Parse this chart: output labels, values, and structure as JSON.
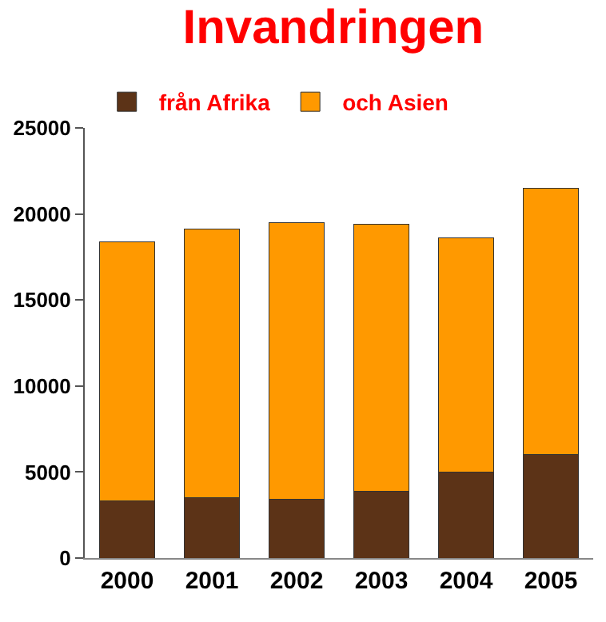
{
  "chart_data": {
    "type": "bar",
    "title": "Invandringen",
    "stacked": true,
    "categories": [
      "2000",
      "2001",
      "2002",
      "2003",
      "2004",
      "2005"
    ],
    "series": [
      {
        "name": "från Afrika",
        "color": "#5c3317",
        "values": [
          3300,
          3500,
          3400,
          3900,
          5000,
          6000
        ]
      },
      {
        "name": "och Asien",
        "color": "#ff9900",
        "values": [
          15100,
          15600,
          16100,
          15500,
          13600,
          15500
        ]
      }
    ],
    "ylim": [
      0,
      25000
    ],
    "yticks": [
      0,
      5000,
      10000,
      15000,
      20000,
      25000
    ],
    "legend": "top"
  }
}
